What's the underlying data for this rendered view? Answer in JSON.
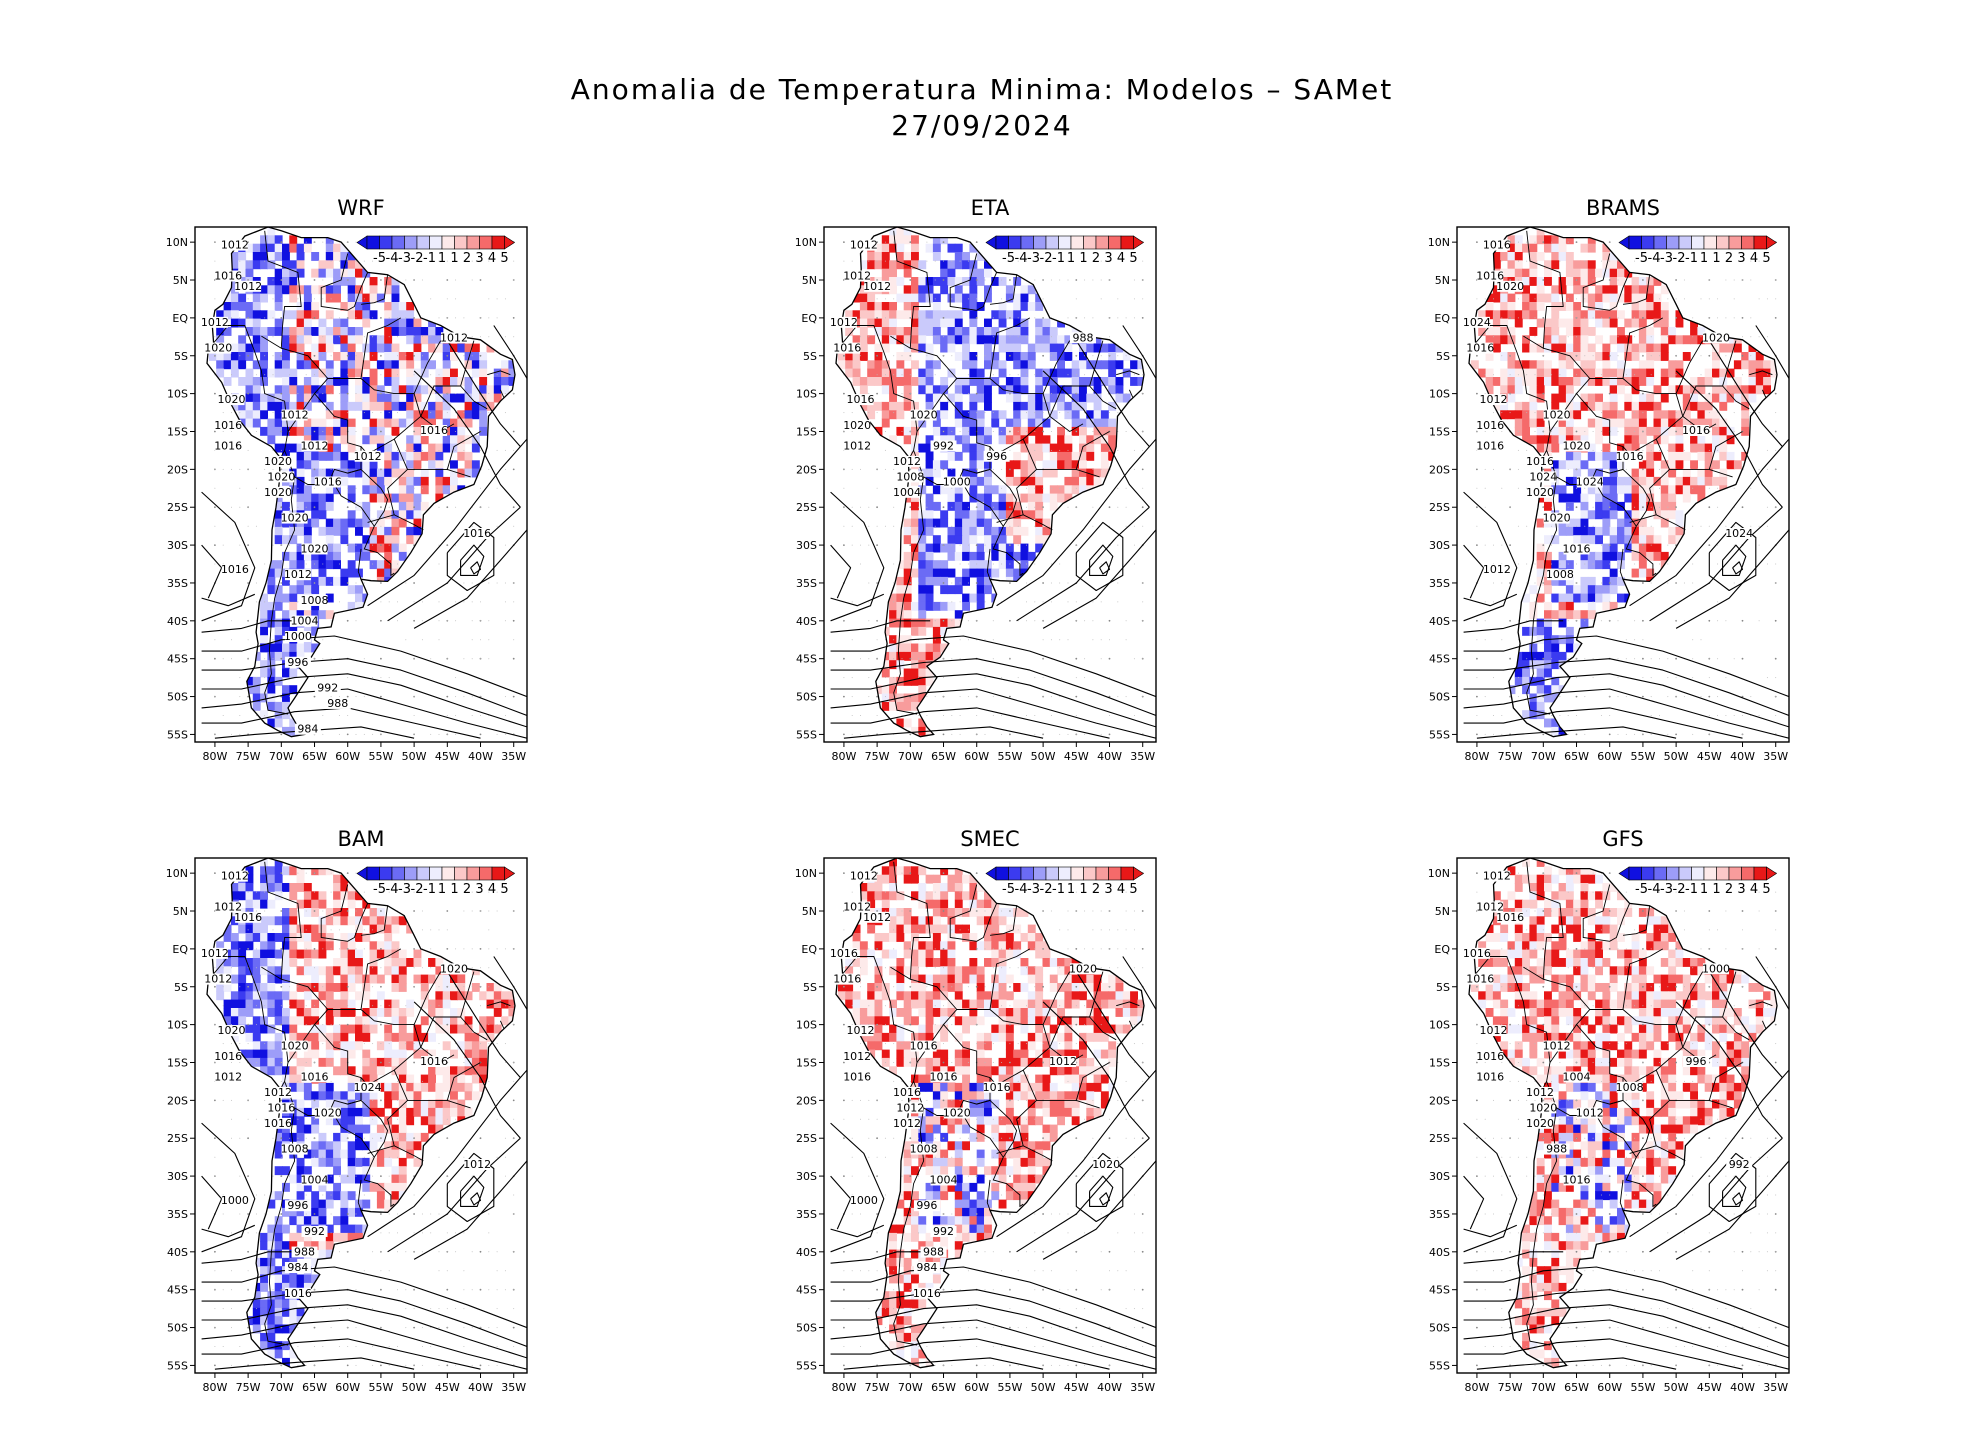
{
  "title": {
    "line1": "Anomalia de Temperatura Minima: Modelos – SAMet",
    "line2": "27/09/2024"
  },
  "colorbar": {
    "labels": [
      "-5",
      "-4",
      "-3",
      "-2",
      "-1",
      "1",
      "1",
      "2",
      "3",
      "4",
      "5"
    ],
    "colors": [
      "#1010e0",
      "#3b3bf0",
      "#6b6bf5",
      "#9d9df8",
      "#cacafb",
      "#ededfd",
      "#fdeaea",
      "#fbc8c8",
      "#f89c9c",
      "#f56a6a",
      "#e81818"
    ]
  },
  "axes": {
    "lat_labels": [
      "10N",
      "5N",
      "EQ",
      "5S",
      "10S",
      "15S",
      "20S",
      "25S",
      "30S",
      "35S",
      "40S",
      "45S",
      "50S",
      "55S"
    ],
    "lon_labels": [
      "80W",
      "75W",
      "70W",
      "65W",
      "60W",
      "55W",
      "50W",
      "45W",
      "40W",
      "35W"
    ]
  },
  "panels": [
    {
      "name": "WRF",
      "interior": "mixed",
      "coast": "cool",
      "south": "cool",
      "isobars": [
        "1012",
        "1016",
        "1012",
        "1012",
        "1020",
        "1020",
        "1012",
        "1016",
        "1016",
        "1020",
        "1020",
        "1020",
        "1016",
        "1012",
        "1012",
        "1012",
        "1016",
        "1016",
        "1020",
        "1020",
        "1016",
        "1012",
        "1008",
        "1004",
        "1000",
        "996",
        "992",
        "988",
        "984"
      ]
    },
    {
      "name": "ETA",
      "interior": "cool",
      "coast": "warm",
      "south": "warm",
      "isobars": [
        "1012",
        "1012",
        "1012",
        "1012",
        "1016",
        "1016",
        "1020",
        "1020",
        "1012",
        "1012",
        "1008",
        "1004",
        "1000",
        "996",
        "992",
        "988"
      ]
    },
    {
      "name": "BRAMS",
      "interior": "warm",
      "coast": "warm",
      "south": "cool",
      "isobars": [
        "1016",
        "1016",
        "1020",
        "1024",
        "1016",
        "1012",
        "1020",
        "1016",
        "1016",
        "1016",
        "1024",
        "1020",
        "1024",
        "1016",
        "1020",
        "1020",
        "1016",
        "1024",
        "1020",
        "1016",
        "1012",
        "1008"
      ]
    },
    {
      "name": "BAM",
      "interior": "warm",
      "coast": "cool",
      "south": "cool",
      "isobars": [
        "1012",
        "1012",
        "1016",
        "1012",
        "1012",
        "1020",
        "1020",
        "1016",
        "1012",
        "1012",
        "1016",
        "1016",
        "1020",
        "1024",
        "1016",
        "1020",
        "1016",
        "1012",
        "1008",
        "1004",
        "1000",
        "996",
        "992",
        "988",
        "984",
        "1016"
      ]
    },
    {
      "name": "SMEC",
      "interior": "warm",
      "coast": "warm",
      "south": "warm",
      "isobars": [
        "1012",
        "1012",
        "1012",
        "1016",
        "1016",
        "1012",
        "1016",
        "1012",
        "1016",
        "1016",
        "1012",
        "1012",
        "1020",
        "1016",
        "1016",
        "1020",
        "1012",
        "1020",
        "1008",
        "1004",
        "1000",
        "996",
        "992",
        "988",
        "984",
        "1016"
      ]
    },
    {
      "name": "GFS",
      "interior": "warm",
      "coast": "warm",
      "south": "warm",
      "isobars": [
        "1012",
        "1012",
        "1016",
        "1016",
        "1016",
        "1012",
        "1012",
        "1016",
        "1016",
        "1012",
        "1020",
        "1020",
        "1012",
        "1008",
        "1004",
        "1000",
        "996",
        "992",
        "988",
        "1016"
      ]
    }
  ]
}
